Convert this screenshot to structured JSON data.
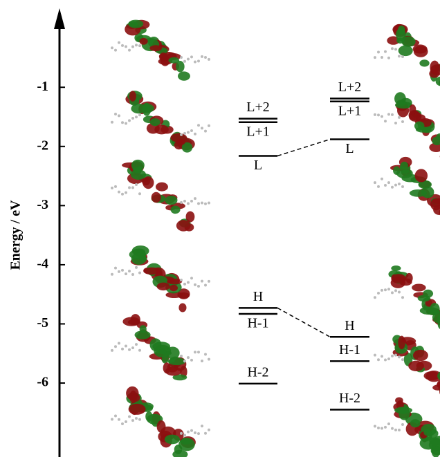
{
  "chart_data": {
    "type": "level",
    "y_label": "Energy / eV",
    "ylim": [
      -7.25,
      0.3
    ],
    "yticks": [
      -1,
      -2,
      -3,
      -4,
      -5,
      -6
    ],
    "series": [
      {
        "color": "#000000",
        "labels": [
          "L+2",
          "L+1",
          "L",
          "H",
          "H-1",
          "H-2"
        ],
        "values": [
          -1.53,
          -1.59,
          -2.16,
          -4.73,
          -4.83,
          -6.01
        ]
      },
      {
        "color": "#000000",
        "labels": [
          "L+2",
          "L+1",
          "L",
          "H",
          "H-1",
          "H-2"
        ],
        "values": [
          -1.19,
          -1.24,
          -1.88,
          -5.22,
          -5.63,
          -6.45
        ]
      }
    ]
  }
}
